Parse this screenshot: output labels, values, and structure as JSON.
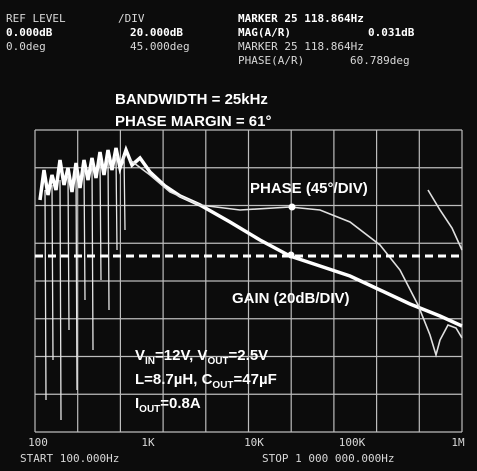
{
  "header": {
    "ref_level": {
      "label": "REF LEVEL",
      "mag": "0.000dB",
      "phase": "0.0deg"
    },
    "per_div": {
      "label": "/DIV",
      "mag": "20.000dB",
      "phase": "45.000deg"
    },
    "marker_mag": {
      "label": "MARKER 25 118.864Hz",
      "name": "MAG(A/R)",
      "value": "0.031dB"
    },
    "marker_phase": {
      "label": "MARKER 25 118.864Hz",
      "name": "PHASE(A/R)",
      "value": "60.789deg"
    }
  },
  "annotations": {
    "bandwidth": "BANDWIDTH = 25kHz",
    "phase_margin": "PHASE MARGIN = 61°",
    "phase_trace": "PHASE (45°/DIV)",
    "gain_trace": "GAIN (20dB/DIV)",
    "conditions": [
      [
        "V",
        "IN",
        "=12V, V",
        "OUT",
        "=2.5V"
      ],
      [
        "L=8.7µH, C",
        "OUT",
        "=47µF"
      ],
      [
        "I",
        "OUT",
        "=0.8A"
      ]
    ]
  },
  "x_axis": {
    "labels": [
      "100",
      "1K",
      "10K",
      "100K",
      "1M"
    ],
    "start": "START 100.000Hz",
    "stop": "STOP 1 000 000.000Hz"
  }
}
